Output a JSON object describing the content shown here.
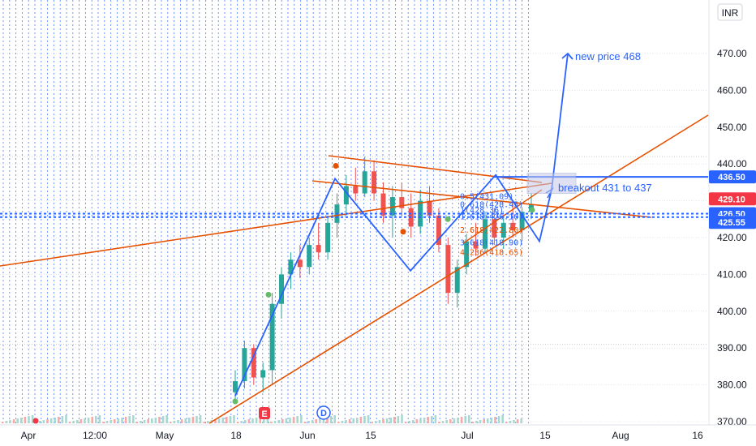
{
  "currency_label": "INR",
  "colors": {
    "blue": "#2962ff",
    "orange": "#e65100",
    "red_tag": "#f23645",
    "green": "#26a69a",
    "grid": "#b2b5be",
    "up_candle": "#26a69a",
    "down_candle": "#ef5350"
  },
  "chart_data": {
    "type": "candlestick",
    "y_axis": {
      "min": 369,
      "max": 480,
      "ticks": [
        370,
        380,
        390,
        400,
        410,
        420,
        430,
        440,
        450,
        460,
        470
      ],
      "tick_labels": [
        "370.00",
        "380.00",
        "390.00",
        "400.00",
        "410.00",
        "420.00",
        "430.00",
        "440.00",
        "450.00",
        "460.00",
        "470.00"
      ]
    },
    "x_axis": {
      "tick_labels": [
        "Apr",
        "12:00",
        "May",
        "18",
        "Jun",
        "15",
        "Jul",
        "15",
        "Aug",
        "16"
      ]
    },
    "price_tags": [
      {
        "value": 436.5,
        "label": "436.50",
        "color": "#2962ff"
      },
      {
        "value": 429.1,
        "label": "429.10",
        "color": "#f23645"
      },
      {
        "value": 426.5,
        "label": "426.50",
        "color": "#2962ff"
      },
      {
        "value": 425.55,
        "label": "425.55",
        "color": "#2962ff"
      }
    ],
    "candles": [
      {
        "o": 378,
        "h": 384,
        "l": 376,
        "c": 381
      },
      {
        "o": 381,
        "h": 392,
        "l": 379,
        "c": 390
      },
      {
        "o": 390,
        "h": 391,
        "l": 380,
        "c": 382
      },
      {
        "o": 382,
        "h": 386,
        "l": 378,
        "c": 384
      },
      {
        "o": 384,
        "h": 405,
        "l": 380,
        "c": 402
      },
      {
        "o": 402,
        "h": 412,
        "l": 398,
        "c": 410
      },
      {
        "o": 410,
        "h": 416,
        "l": 406,
        "c": 414
      },
      {
        "o": 414,
        "h": 418,
        "l": 409,
        "c": 412
      },
      {
        "o": 412,
        "h": 420,
        "l": 410,
        "c": 418
      },
      {
        "o": 418,
        "h": 424,
        "l": 414,
        "c": 416
      },
      {
        "o": 416,
        "h": 426,
        "l": 414,
        "c": 424
      },
      {
        "o": 424,
        "h": 432,
        "l": 420,
        "c": 429
      },
      {
        "o": 429,
        "h": 437,
        "l": 426,
        "c": 434
      },
      {
        "o": 434,
        "h": 439,
        "l": 430,
        "c": 432
      },
      {
        "o": 432,
        "h": 442,
        "l": 431,
        "c": 438
      },
      {
        "o": 438,
        "h": 441,
        "l": 430,
        "c": 432
      },
      {
        "o": 432,
        "h": 435,
        "l": 424,
        "c": 426
      },
      {
        "o": 426,
        "h": 434,
        "l": 420,
        "c": 431
      },
      {
        "o": 431,
        "h": 435,
        "l": 426,
        "c": 428
      },
      {
        "o": 428,
        "h": 432,
        "l": 420,
        "c": 423
      },
      {
        "o": 423,
        "h": 433,
        "l": 421,
        "c": 430
      },
      {
        "o": 430,
        "h": 434,
        "l": 424,
        "c": 426
      },
      {
        "o": 426,
        "h": 428,
        "l": 416,
        "c": 418
      },
      {
        "o": 418,
        "h": 420,
        "l": 402,
        "c": 405
      },
      {
        "o": 405,
        "h": 414,
        "l": 401,
        "c": 412
      },
      {
        "o": 412,
        "h": 421,
        "l": 410,
        "c": 419
      },
      {
        "o": 419,
        "h": 424,
        "l": 415,
        "c": 417
      },
      {
        "o": 417,
        "h": 427,
        "l": 416,
        "c": 425
      },
      {
        "o": 425,
        "h": 428,
        "l": 418,
        "c": 420
      },
      {
        "o": 420,
        "h": 426,
        "l": 417,
        "c": 424
      },
      {
        "o": 424,
        "h": 429,
        "l": 420,
        "c": 422
      },
      {
        "o": 422,
        "h": 428,
        "l": 419,
        "c": 427
      },
      {
        "o": 427,
        "h": 432,
        "l": 425,
        "c": 429
      }
    ],
    "pattern_waypoints": [
      {
        "x": 290,
        "y": 377
      },
      {
        "x": 413,
        "y": 436
      },
      {
        "x": 506,
        "y": 411
      },
      {
        "x": 611,
        "y": 437
      },
      {
        "x": 665,
        "y": 419
      },
      {
        "x": 680,
        "y": 433
      },
      {
        "x": 700,
        "y": 470
      }
    ],
    "fib_labels": [
      {
        "text": "0.5(431.09)",
        "value": 431.1,
        "color": "#2962ff"
      },
      {
        "text": "0.618(428.45)",
        "value": 428.9,
        "color": "#2962ff"
      },
      {
        "text": "1(428.36)",
        "value": 427.4,
        "color": "#2962ff"
      },
      {
        "text": "1.618(426.10)",
        "value": 425.6,
        "color": "#2962ff"
      },
      {
        "text": "2.618(422.80)",
        "value": 422.0,
        "color": "#e65100"
      },
      {
        "text": "3.618(418.90)",
        "value": 418.6,
        "color": "#2962ff"
      },
      {
        "text": "4.236(418.65)",
        "value": 415.9,
        "color": "#e65100"
      }
    ],
    "annotations": [
      {
        "text": "new price 468",
        "value": 468.2
      },
      {
        "text": "breakout 431 to 437",
        "value": 432.6
      }
    ],
    "markers": [
      {
        "label": "E",
        "value": 371
      },
      {
        "label": "D",
        "value": 372
      }
    ]
  }
}
